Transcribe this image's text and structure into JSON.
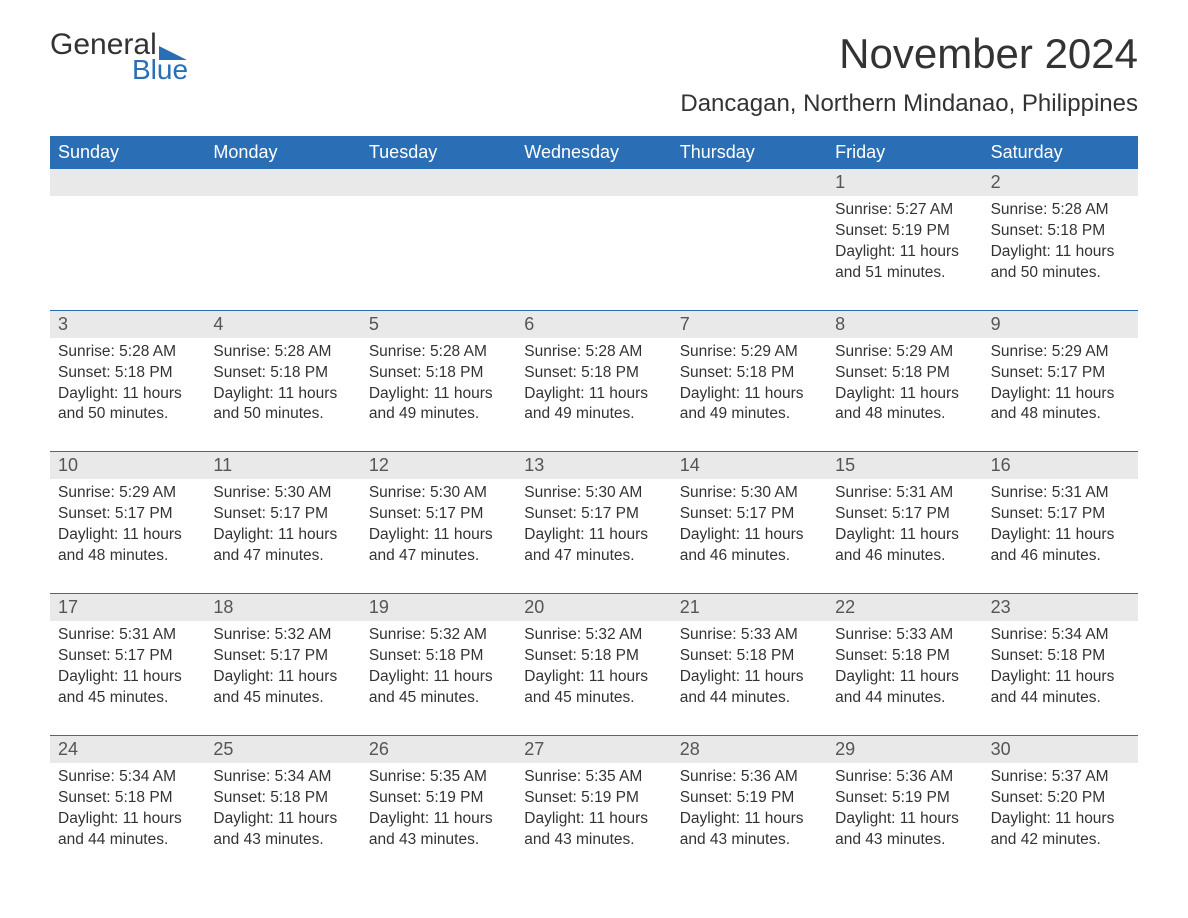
{
  "logo": {
    "word1": "General",
    "word2": "Blue",
    "accent_color": "#2a6fb5"
  },
  "title": "November 2024",
  "subtitle": "Dancagan, Northern Mindanao, Philippines",
  "colors": {
    "header_bg": "#2a6fb5",
    "header_text": "#ffffff",
    "daynum_bg": "#e9e9e9",
    "week_border": "#2a6fb5",
    "body_text": "#333333"
  },
  "fonts": {
    "title_size": 42,
    "subtitle_size": 24,
    "header_cell_size": 18,
    "cell_size": 15.5
  },
  "day_headers": [
    "Sunday",
    "Monday",
    "Tuesday",
    "Wednesday",
    "Thursday",
    "Friday",
    "Saturday"
  ],
  "weeks": [
    {
      "days": [
        null,
        null,
        null,
        null,
        null,
        {
          "num": "1",
          "sunrise": "Sunrise: 5:27 AM",
          "sunset": "Sunset: 5:19 PM",
          "daylight1": "Daylight: 11 hours",
          "daylight2": "and 51 minutes."
        },
        {
          "num": "2",
          "sunrise": "Sunrise: 5:28 AM",
          "sunset": "Sunset: 5:18 PM",
          "daylight1": "Daylight: 11 hours",
          "daylight2": "and 50 minutes."
        }
      ]
    },
    {
      "days": [
        {
          "num": "3",
          "sunrise": "Sunrise: 5:28 AM",
          "sunset": "Sunset: 5:18 PM",
          "daylight1": "Daylight: 11 hours",
          "daylight2": "and 50 minutes."
        },
        {
          "num": "4",
          "sunrise": "Sunrise: 5:28 AM",
          "sunset": "Sunset: 5:18 PM",
          "daylight1": "Daylight: 11 hours",
          "daylight2": "and 50 minutes."
        },
        {
          "num": "5",
          "sunrise": "Sunrise: 5:28 AM",
          "sunset": "Sunset: 5:18 PM",
          "daylight1": "Daylight: 11 hours",
          "daylight2": "and 49 minutes."
        },
        {
          "num": "6",
          "sunrise": "Sunrise: 5:28 AM",
          "sunset": "Sunset: 5:18 PM",
          "daylight1": "Daylight: 11 hours",
          "daylight2": "and 49 minutes."
        },
        {
          "num": "7",
          "sunrise": "Sunrise: 5:29 AM",
          "sunset": "Sunset: 5:18 PM",
          "daylight1": "Daylight: 11 hours",
          "daylight2": "and 49 minutes."
        },
        {
          "num": "8",
          "sunrise": "Sunrise: 5:29 AM",
          "sunset": "Sunset: 5:18 PM",
          "daylight1": "Daylight: 11 hours",
          "daylight2": "and 48 minutes."
        },
        {
          "num": "9",
          "sunrise": "Sunrise: 5:29 AM",
          "sunset": "Sunset: 5:17 PM",
          "daylight1": "Daylight: 11 hours",
          "daylight2": "and 48 minutes."
        }
      ]
    },
    {
      "days": [
        {
          "num": "10",
          "sunrise": "Sunrise: 5:29 AM",
          "sunset": "Sunset: 5:17 PM",
          "daylight1": "Daylight: 11 hours",
          "daylight2": "and 48 minutes."
        },
        {
          "num": "11",
          "sunrise": "Sunrise: 5:30 AM",
          "sunset": "Sunset: 5:17 PM",
          "daylight1": "Daylight: 11 hours",
          "daylight2": "and 47 minutes."
        },
        {
          "num": "12",
          "sunrise": "Sunrise: 5:30 AM",
          "sunset": "Sunset: 5:17 PM",
          "daylight1": "Daylight: 11 hours",
          "daylight2": "and 47 minutes."
        },
        {
          "num": "13",
          "sunrise": "Sunrise: 5:30 AM",
          "sunset": "Sunset: 5:17 PM",
          "daylight1": "Daylight: 11 hours",
          "daylight2": "and 47 minutes."
        },
        {
          "num": "14",
          "sunrise": "Sunrise: 5:30 AM",
          "sunset": "Sunset: 5:17 PM",
          "daylight1": "Daylight: 11 hours",
          "daylight2": "and 46 minutes."
        },
        {
          "num": "15",
          "sunrise": "Sunrise: 5:31 AM",
          "sunset": "Sunset: 5:17 PM",
          "daylight1": "Daylight: 11 hours",
          "daylight2": "and 46 minutes."
        },
        {
          "num": "16",
          "sunrise": "Sunrise: 5:31 AM",
          "sunset": "Sunset: 5:17 PM",
          "daylight1": "Daylight: 11 hours",
          "daylight2": "and 46 minutes."
        }
      ]
    },
    {
      "days": [
        {
          "num": "17",
          "sunrise": "Sunrise: 5:31 AM",
          "sunset": "Sunset: 5:17 PM",
          "daylight1": "Daylight: 11 hours",
          "daylight2": "and 45 minutes."
        },
        {
          "num": "18",
          "sunrise": "Sunrise: 5:32 AM",
          "sunset": "Sunset: 5:17 PM",
          "daylight1": "Daylight: 11 hours",
          "daylight2": "and 45 minutes."
        },
        {
          "num": "19",
          "sunrise": "Sunrise: 5:32 AM",
          "sunset": "Sunset: 5:18 PM",
          "daylight1": "Daylight: 11 hours",
          "daylight2": "and 45 minutes."
        },
        {
          "num": "20",
          "sunrise": "Sunrise: 5:32 AM",
          "sunset": "Sunset: 5:18 PM",
          "daylight1": "Daylight: 11 hours",
          "daylight2": "and 45 minutes."
        },
        {
          "num": "21",
          "sunrise": "Sunrise: 5:33 AM",
          "sunset": "Sunset: 5:18 PM",
          "daylight1": "Daylight: 11 hours",
          "daylight2": "and 44 minutes."
        },
        {
          "num": "22",
          "sunrise": "Sunrise: 5:33 AM",
          "sunset": "Sunset: 5:18 PM",
          "daylight1": "Daylight: 11 hours",
          "daylight2": "and 44 minutes."
        },
        {
          "num": "23",
          "sunrise": "Sunrise: 5:34 AM",
          "sunset": "Sunset: 5:18 PM",
          "daylight1": "Daylight: 11 hours",
          "daylight2": "and 44 minutes."
        }
      ]
    },
    {
      "days": [
        {
          "num": "24",
          "sunrise": "Sunrise: 5:34 AM",
          "sunset": "Sunset: 5:18 PM",
          "daylight1": "Daylight: 11 hours",
          "daylight2": "and 44 minutes."
        },
        {
          "num": "25",
          "sunrise": "Sunrise: 5:34 AM",
          "sunset": "Sunset: 5:18 PM",
          "daylight1": "Daylight: 11 hours",
          "daylight2": "and 43 minutes."
        },
        {
          "num": "26",
          "sunrise": "Sunrise: 5:35 AM",
          "sunset": "Sunset: 5:19 PM",
          "daylight1": "Daylight: 11 hours",
          "daylight2": "and 43 minutes."
        },
        {
          "num": "27",
          "sunrise": "Sunrise: 5:35 AM",
          "sunset": "Sunset: 5:19 PM",
          "daylight1": "Daylight: 11 hours",
          "daylight2": "and 43 minutes."
        },
        {
          "num": "28",
          "sunrise": "Sunrise: 5:36 AM",
          "sunset": "Sunset: 5:19 PM",
          "daylight1": "Daylight: 11 hours",
          "daylight2": "and 43 minutes."
        },
        {
          "num": "29",
          "sunrise": "Sunrise: 5:36 AM",
          "sunset": "Sunset: 5:19 PM",
          "daylight1": "Daylight: 11 hours",
          "daylight2": "and 43 minutes."
        },
        {
          "num": "30",
          "sunrise": "Sunrise: 5:37 AM",
          "sunset": "Sunset: 5:20 PM",
          "daylight1": "Daylight: 11 hours",
          "daylight2": "and 42 minutes."
        }
      ]
    }
  ]
}
